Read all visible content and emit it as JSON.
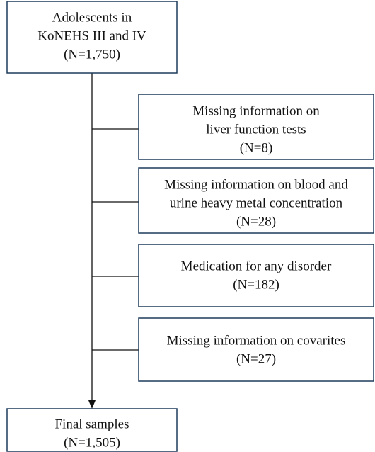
{
  "nodes": [
    {
      "lines": [
        "Adolescents in",
        "KoNEHS III and IV",
        "(N=1,750)"
      ]
    },
    {
      "lines": [
        "Missing information on",
        "liver function tests",
        "(N=8)"
      ]
    },
    {
      "lines": [
        "Missing information on blood and",
        "urine heavy metal concentration",
        "(N=28)"
      ]
    },
    {
      "lines": [
        "Medication for any disorder",
        "(N=182)"
      ]
    },
    {
      "lines": [
        "Missing information on covarites",
        "(N=27)"
      ]
    },
    {
      "lines": [
        "Final samples",
        "(N=1,505)"
      ]
    }
  ]
}
